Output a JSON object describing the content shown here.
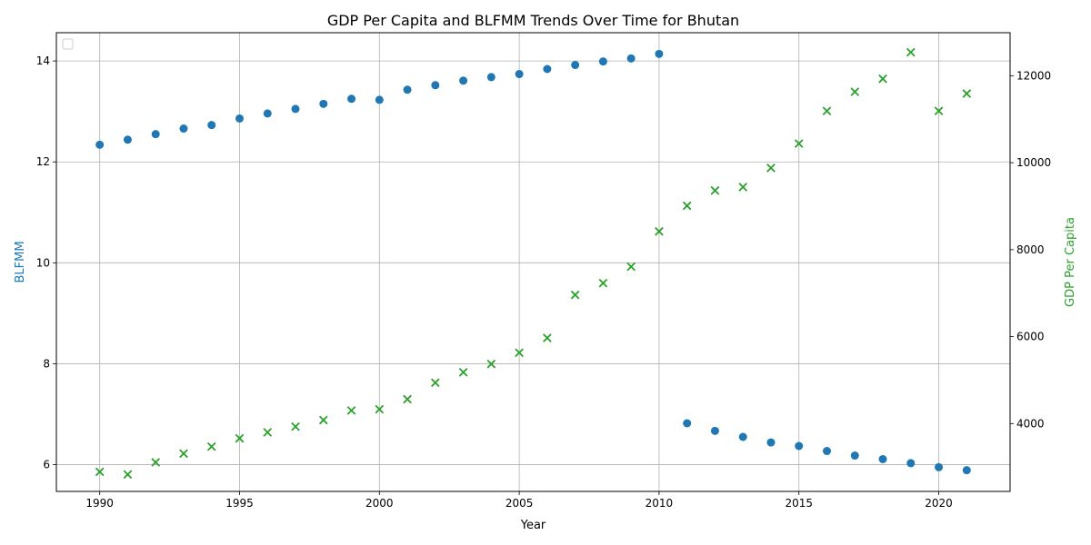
{
  "chart_data": {
    "type": "scatter",
    "title": "GDP Per Capita and BLFMM Trends Over Time for Bhutan",
    "xlabel": "Year",
    "ylabel_left": "BLFMM",
    "ylabel_right": "GDP Per Capita",
    "xlim": [
      1988.45,
      2022.55
    ],
    "ylim_left": [
      5.47,
      14.56
    ],
    "ylim_right": [
      2440,
      12990
    ],
    "xticks": [
      1990,
      1995,
      2000,
      2005,
      2010,
      2015,
      2020
    ],
    "yticks_left": [
      6,
      8,
      10,
      12,
      14
    ],
    "yticks_right": [
      4000,
      6000,
      8000,
      10000,
      12000
    ],
    "grid": true,
    "legend": "top-left (empty)",
    "colors": {
      "left": "#1f77b4",
      "right": "#2ca02c"
    },
    "series": [
      {
        "axis": "left",
        "marker": "circle",
        "x": [
          1990,
          1991,
          1992,
          1993,
          1994,
          1995,
          1996,
          1997,
          1998,
          1999,
          2000,
          2001,
          2002,
          2003,
          2004,
          2005,
          2006,
          2007,
          2008,
          2009,
          2010,
          2011,
          2012,
          2013,
          2014,
          2015,
          2016,
          2017,
          2018,
          2019,
          2020,
          2021
        ],
        "values": [
          12.34,
          12.44,
          12.55,
          12.66,
          12.73,
          12.86,
          12.96,
          13.05,
          13.15,
          13.25,
          13.23,
          13.43,
          13.52,
          13.61,
          13.68,
          13.74,
          13.84,
          13.92,
          13.99,
          14.05,
          14.14,
          6.82,
          6.67,
          6.55,
          6.44,
          6.37,
          6.27,
          6.18,
          6.11,
          6.03,
          5.95,
          5.89
        ]
      },
      {
        "axis": "right",
        "marker": "x",
        "x": [
          1990,
          1991,
          1992,
          1993,
          1994,
          1995,
          1996,
          1997,
          1998,
          1999,
          2000,
          2001,
          2002,
          2003,
          2004,
          2005,
          2006,
          2007,
          2008,
          2009,
          2010,
          2011,
          2012,
          2013,
          2014,
          2015,
          2016,
          2017,
          2018,
          2019,
          2020,
          2021
        ],
        "values": [
          2890,
          2830,
          3110,
          3310,
          3470,
          3660,
          3800,
          3930,
          4080,
          4300,
          4330,
          4560,
          4940,
          5180,
          5370,
          5630,
          5970,
          6960,
          7230,
          7610,
          8420,
          9010,
          9360,
          9440,
          9880,
          10440,
          11190,
          11630,
          11930,
          12540,
          11190,
          11590
        ]
      }
    ]
  }
}
